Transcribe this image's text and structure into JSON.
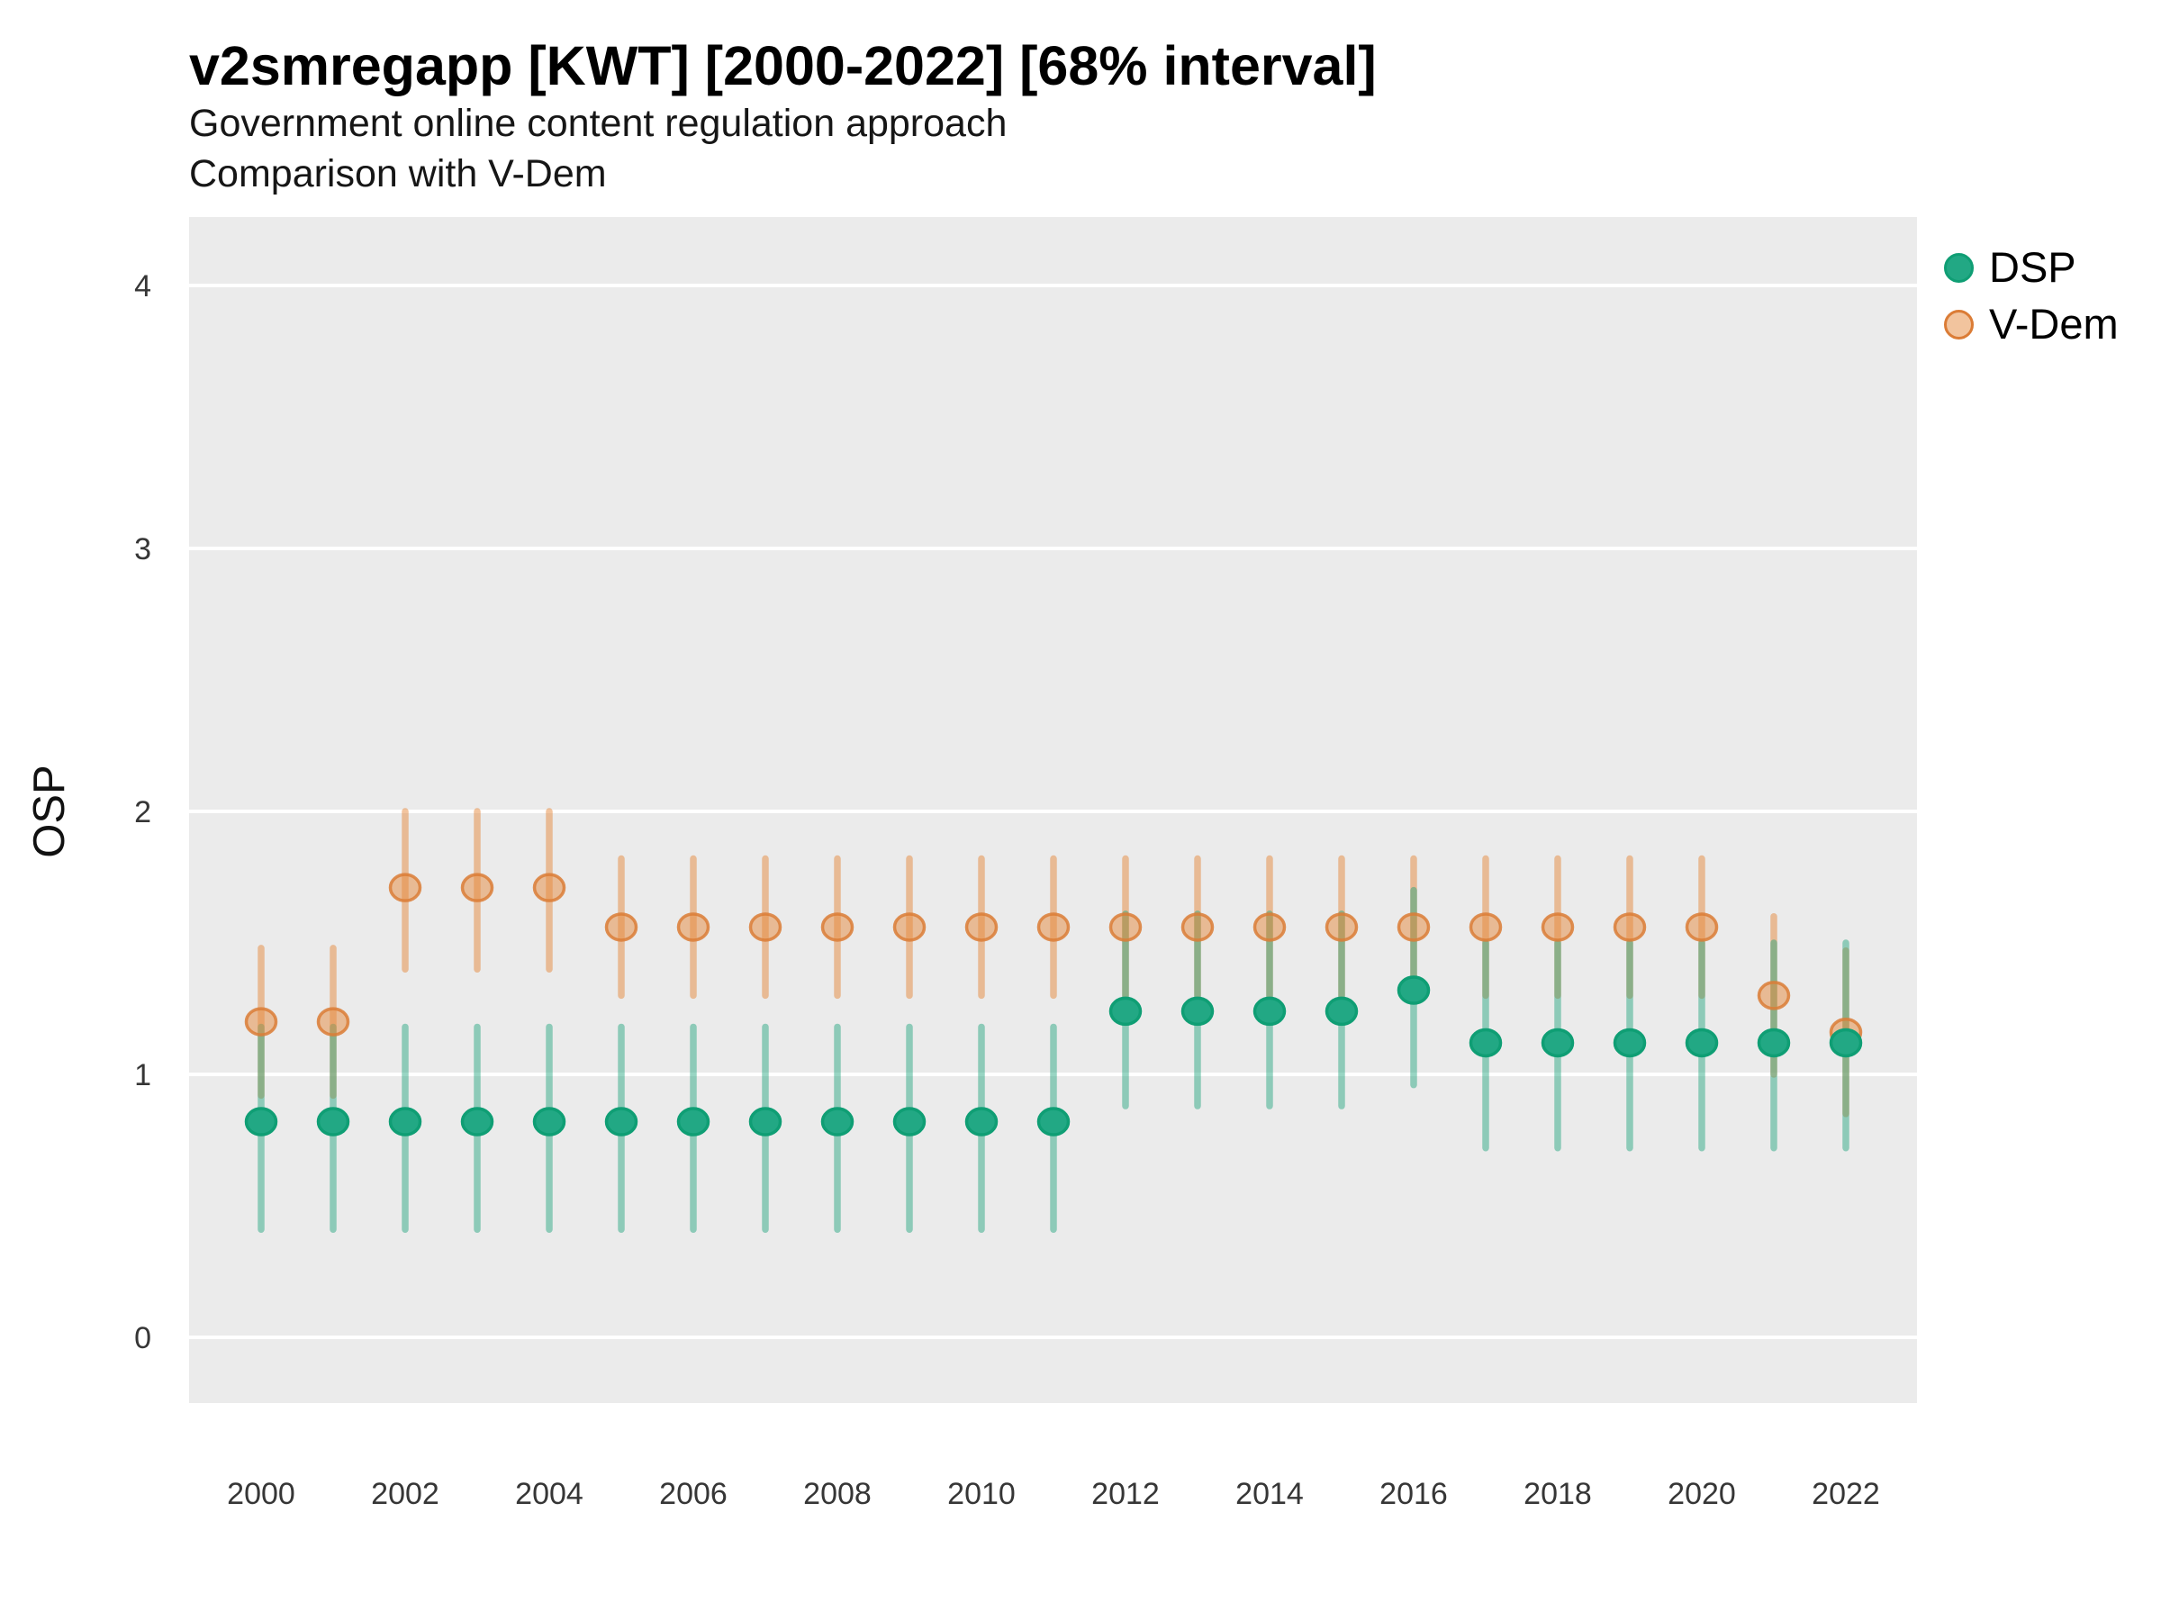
{
  "header": {
    "title": "v2smregapp [KWT] [2000-2022] [68% interval]",
    "subtitle1": "Government online content regulation approach",
    "subtitle2": "Comparison with V-Dem"
  },
  "axes": {
    "y_label": "OSP",
    "y_ticks": [
      0,
      1,
      2,
      3,
      4
    ],
    "x_ticks": [
      2000,
      2002,
      2004,
      2006,
      2008,
      2010,
      2012,
      2014,
      2016,
      2018,
      2020,
      2022
    ]
  },
  "legend": {
    "position": "right",
    "items": [
      {
        "label": "DSP",
        "fill": "#22a884",
        "fill_alpha": 1,
        "stroke": "#0f9e74"
      },
      {
        "label": "V-Dem",
        "fill": "#e58a3d",
        "fill_alpha": 0.5,
        "stroke": "#db7c36"
      }
    ]
  },
  "colors": {
    "panel_background": "#ebebeb",
    "gridline": "#ffffff",
    "tick_label": "#363636"
  },
  "chart_data": {
    "type": "pointrange",
    "title": "v2smregapp [KWT] [2000-2022] [68% interval]",
    "subtitle": "Government online content regulation approach — Comparison with V-Dem",
    "xlabel": "",
    "ylabel": "OSP",
    "ylim": [
      0,
      4
    ],
    "interval": "68%",
    "grid": "major-horizontal-white-on-gray",
    "legend_position": "right",
    "x": [
      2000,
      2001,
      2002,
      2003,
      2004,
      2005,
      2006,
      2007,
      2008,
      2009,
      2010,
      2011,
      2012,
      2013,
      2014,
      2015,
      2016,
      2017,
      2018,
      2019,
      2020,
      2021,
      2022
    ],
    "series": [
      {
        "name": "DSP",
        "color": "#1aa179",
        "line_rgba": "rgba(26,161,121,0.45)",
        "point_fill": "#22a884",
        "point_stroke": "#0f9e74",
        "values": [
          0.82,
          0.82,
          0.82,
          0.82,
          0.82,
          0.82,
          0.82,
          0.82,
          0.82,
          0.82,
          0.82,
          0.82,
          1.24,
          1.24,
          1.24,
          1.24,
          1.32,
          1.12,
          1.12,
          1.12,
          1.12,
          1.12,
          1.12
        ],
        "lower": [
          0.41,
          0.41,
          0.41,
          0.41,
          0.41,
          0.41,
          0.41,
          0.41,
          0.41,
          0.41,
          0.41,
          0.41,
          0.88,
          0.88,
          0.88,
          0.88,
          0.96,
          0.72,
          0.72,
          0.72,
          0.72,
          0.72,
          0.72
        ],
        "upper": [
          1.18,
          1.18,
          1.18,
          1.18,
          1.18,
          1.18,
          1.18,
          1.18,
          1.18,
          1.18,
          1.18,
          1.18,
          1.61,
          1.61,
          1.61,
          1.61,
          1.7,
          1.5,
          1.5,
          1.5,
          1.5,
          1.5,
          1.5
        ]
      },
      {
        "name": "V-Dem",
        "color": "#e58a3d",
        "line_rgba": "rgba(229,138,61,0.5)",
        "point_fill": "rgba(229,138,61,0.5)",
        "point_stroke": "rgba(219,124,54,0.85)",
        "values": [
          1.2,
          1.2,
          1.71,
          1.71,
          1.71,
          1.56,
          1.56,
          1.56,
          1.56,
          1.56,
          1.56,
          1.56,
          1.56,
          1.56,
          1.56,
          1.56,
          1.56,
          1.56,
          1.56,
          1.56,
          1.56,
          1.3,
          1.16
        ],
        "lower": [
          0.92,
          0.92,
          1.4,
          1.4,
          1.4,
          1.3,
          1.3,
          1.3,
          1.3,
          1.3,
          1.3,
          1.3,
          1.3,
          1.3,
          1.3,
          1.3,
          1.3,
          1.3,
          1.3,
          1.3,
          1.3,
          1.0,
          0.85
        ],
        "upper": [
          1.48,
          1.48,
          2.0,
          2.0,
          2.0,
          1.82,
          1.82,
          1.82,
          1.82,
          1.82,
          1.82,
          1.82,
          1.82,
          1.82,
          1.82,
          1.82,
          1.82,
          1.82,
          1.82,
          1.82,
          1.82,
          1.6,
          1.47
        ]
      }
    ]
  }
}
